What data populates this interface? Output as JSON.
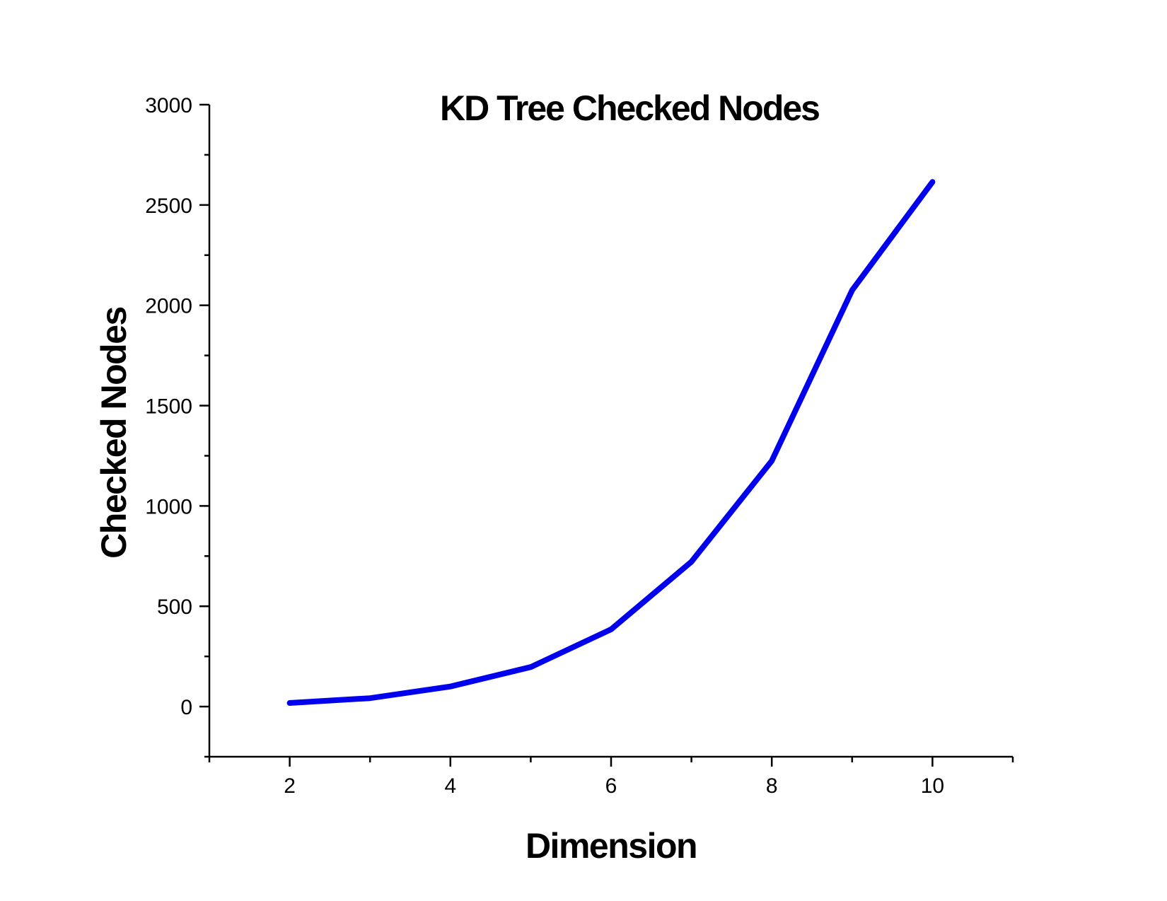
{
  "chart_data": {
    "type": "line",
    "title": "KD Tree Checked Nodes",
    "xlabel": "Dimension",
    "ylabel": "Checked Nodes",
    "xlim": [
      1,
      11
    ],
    "ylim": [
      -250,
      3000
    ],
    "x_ticks": [
      2,
      4,
      6,
      8,
      10
    ],
    "x_tick_labels": [
      "2",
      "4",
      "6",
      "8",
      "10"
    ],
    "x_minor_ticks": [
      1,
      3,
      5,
      7,
      9,
      11
    ],
    "y_ticks": [
      0,
      500,
      1000,
      1500,
      2000,
      2500,
      3000
    ],
    "y_tick_labels": [
      "0",
      "500",
      "1000",
      "1500",
      "2000",
      "2500",
      "3000"
    ],
    "y_minor_ticks": [
      250,
      750,
      1250,
      1750,
      2250,
      2750,
      -250
    ],
    "grid": false,
    "legend": "none",
    "series": [
      {
        "color": "#0000ee",
        "x": [
          2,
          3,
          4,
          5,
          6,
          7,
          8,
          9,
          10
        ],
        "y": [
          18,
          42,
          100,
          197,
          385,
          722,
          1225,
          2075,
          2615
        ]
      }
    ]
  }
}
